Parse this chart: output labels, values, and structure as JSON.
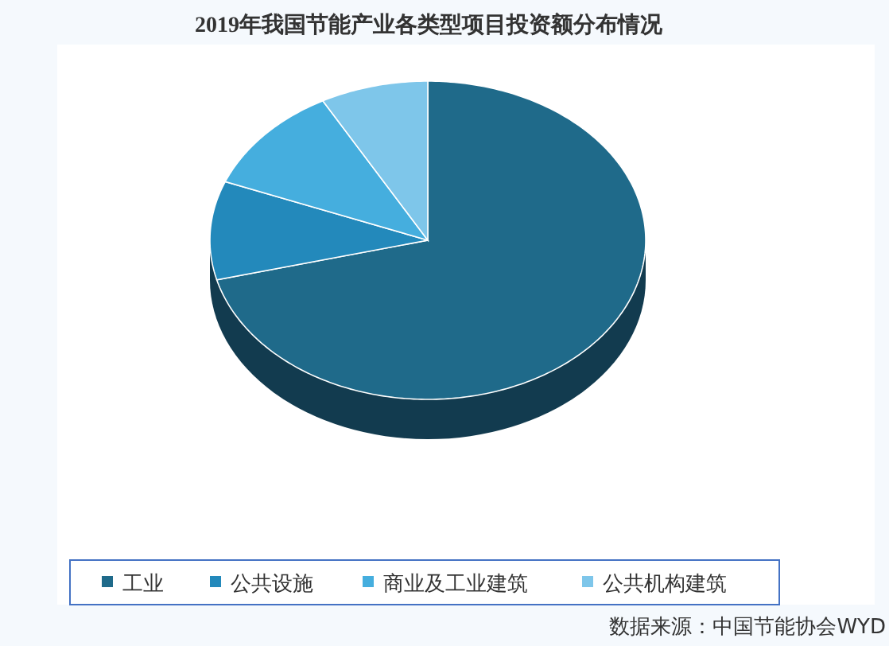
{
  "chart_data": {
    "type": "pie",
    "title": "2019年我国节能产业各类型项目投资额分布情况",
    "categories": [
      "工业",
      "公共设施",
      "商业及工业建筑",
      "公共机构建筑"
    ],
    "values": [
      71,
      10,
      11,
      8
    ],
    "colors": [
      "#1f6a8a",
      "#2389bb",
      "#45aede",
      "#7ec6ea"
    ],
    "legend": "bottom",
    "annotations": [
      "数据来源：中国节能协会WYD"
    ]
  }
}
